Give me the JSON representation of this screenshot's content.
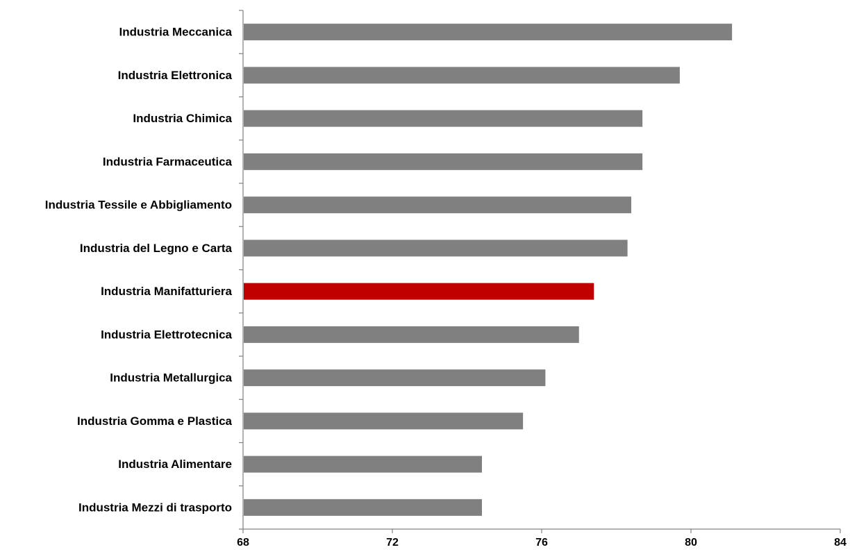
{
  "chart_data": {
    "type": "bar",
    "orientation": "horizontal",
    "categories": [
      "Industria Meccanica",
      "Industria Elettronica",
      "Industria Chimica",
      "Industria Farmaceutica",
      "Industria Tessile e Abbigliamento",
      "Industria del Legno e Carta",
      "Industria Manifatturiera",
      "Industria Elettrotecnica",
      "Industria Metallurgica",
      "Industria Gomma e Plastica",
      "Industria Alimentare",
      "Industria Mezzi di trasporto"
    ],
    "values": [
      81.1,
      79.7,
      78.7,
      78.7,
      78.4,
      78.3,
      77.4,
      77.0,
      76.1,
      75.5,
      74.4,
      74.4
    ],
    "highlight_index": 6,
    "xlim": [
      68,
      84
    ],
    "xticks": [
      "68",
      "72",
      "76",
      "80",
      "84"
    ],
    "title": "",
    "xlabel": "",
    "ylabel": "",
    "grid": false,
    "legend": "none",
    "colors": {
      "bar": "#808080",
      "highlight": "#c00000",
      "axis": "#808080",
      "text": "#000000"
    }
  }
}
